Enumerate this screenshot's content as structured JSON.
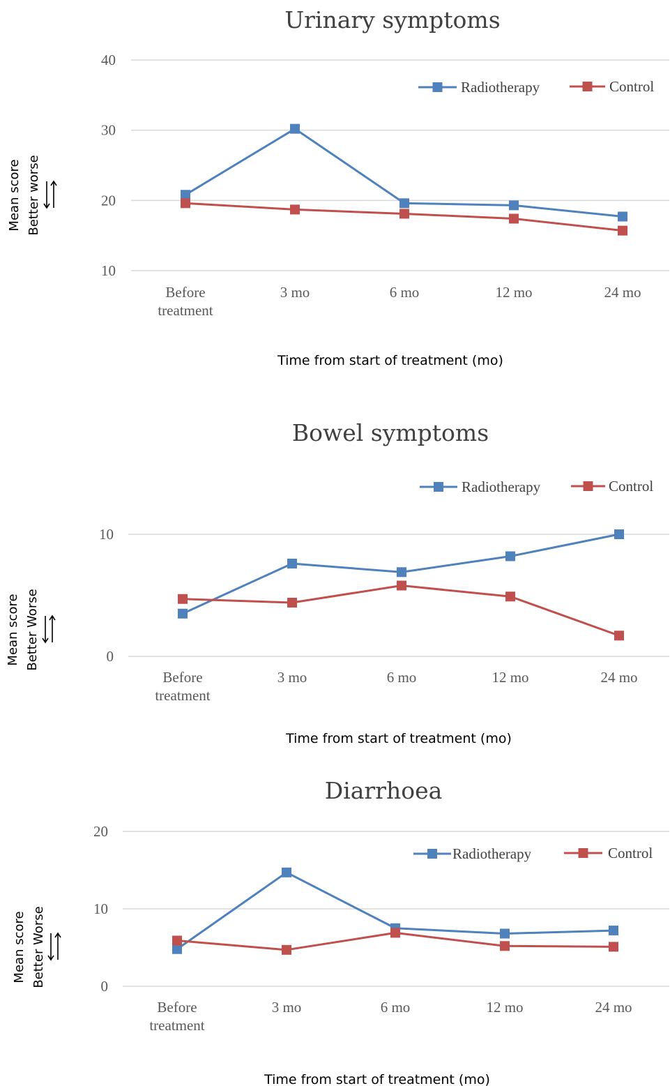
{
  "chart_data": [
    {
      "type": "line",
      "title": "Urinary symptoms",
      "xlabel": "Time from start of treatment (mo)",
      "ylabel": [
        "Mean score",
        "Better worse"
      ],
      "categories": [
        [
          "Before",
          "treatment"
        ],
        [
          "3 mo"
        ],
        [
          "6 mo"
        ],
        [
          "12 mo"
        ],
        [
          "24 mo"
        ]
      ],
      "yticks": [
        "10",
        "20",
        "30",
        "40"
      ],
      "ylim": [
        10,
        40
      ],
      "grid": true,
      "legend": "top-right",
      "series": [
        {
          "name": "Radiotherapy",
          "color": "#4f81bd",
          "values": [
            20.8,
            30.2,
            19.6,
            19.3,
            17.7
          ]
        },
        {
          "name": "Control",
          "color": "#c0504d",
          "values": [
            19.6,
            18.7,
            18.1,
            17.4,
            15.7
          ]
        }
      ]
    },
    {
      "type": "line",
      "title": "Bowel symptoms",
      "xlabel": "Time from start of treatment (mo)",
      "ylabel": [
        "Mean score",
        "Better Worse"
      ],
      "categories": [
        [
          "Before",
          "treatment"
        ],
        [
          "3 mo"
        ],
        [
          "6 mo"
        ],
        [
          "12 mo"
        ],
        [
          "24 mo"
        ]
      ],
      "yticks": [
        "0",
        "10"
      ],
      "ylim": [
        0,
        10
      ],
      "grid": true,
      "legend": "top-right",
      "series": [
        {
          "name": "Radiotherapy",
          "color": "#4f81bd",
          "values": [
            3.5,
            7.6,
            6.9,
            8.2,
            10.0
          ]
        },
        {
          "name": "Control",
          "color": "#c0504d",
          "values": [
            4.7,
            4.4,
            5.8,
            4.9,
            1.7
          ]
        }
      ]
    },
    {
      "type": "line",
      "title": "Diarrhoea",
      "xlabel": "Time from start of treatment (mo)",
      "ylabel": [
        "Mean score",
        "Better Worse"
      ],
      "categories": [
        [
          "Before",
          "treatment"
        ],
        [
          "3 mo"
        ],
        [
          "6 mo"
        ],
        [
          "12 mo"
        ],
        [
          "24 mo"
        ]
      ],
      "yticks": [
        "0",
        "10",
        "20"
      ],
      "ylim": [
        0,
        20
      ],
      "grid": true,
      "legend": "top-right",
      "series": [
        {
          "name": "Radiotherapy",
          "color": "#4f81bd",
          "values": [
            4.8,
            14.7,
            7.5,
            6.8,
            7.2
          ]
        },
        {
          "name": "Control",
          "color": "#c0504d",
          "values": [
            5.9,
            4.7,
            6.9,
            5.2,
            5.1
          ]
        }
      ]
    }
  ]
}
